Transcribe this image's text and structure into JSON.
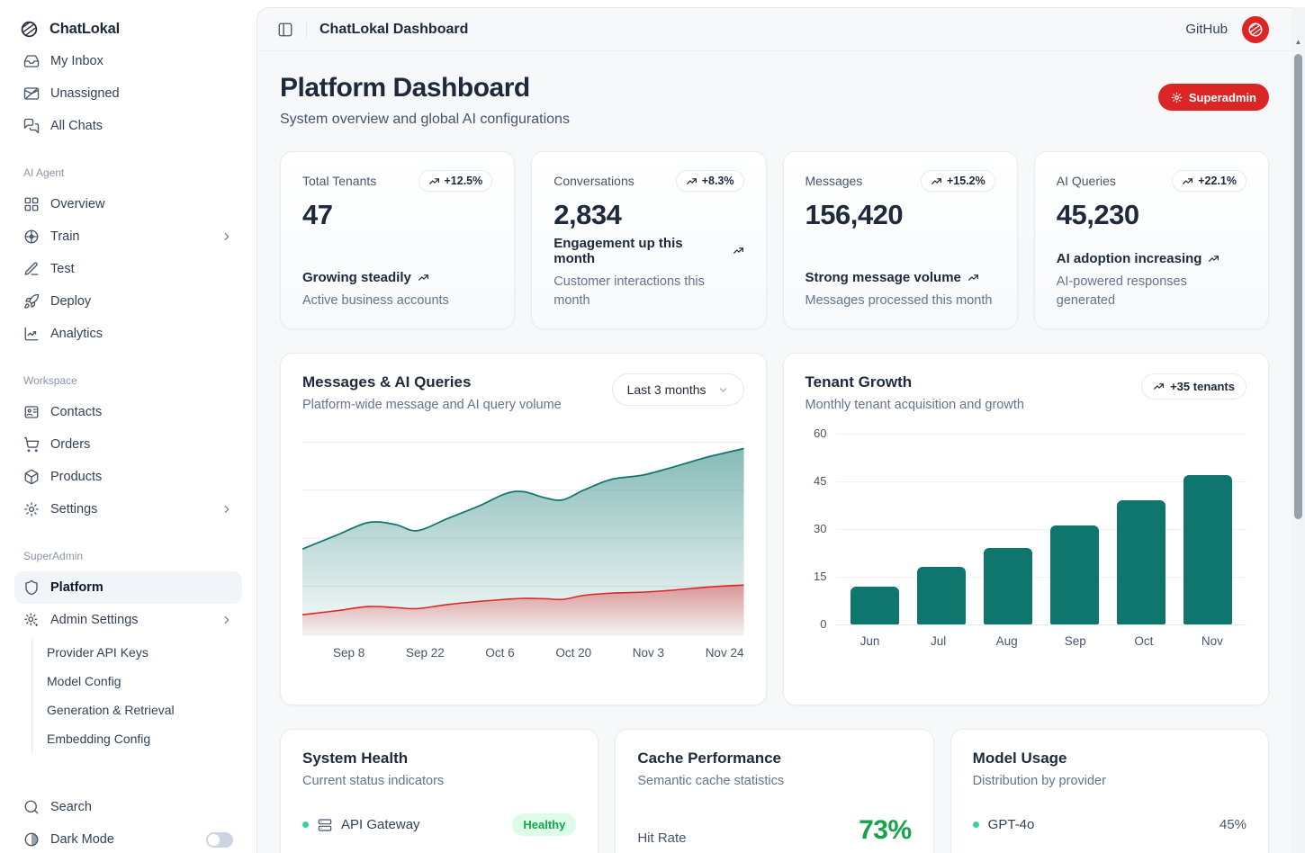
{
  "brand": {
    "name": "ChatLokal"
  },
  "header": {
    "app_title": "ChatLokal Dashboard",
    "github_label": "GitHub"
  },
  "page": {
    "title": "Platform Dashboard",
    "subtitle": "System overview and global AI configurations",
    "role_badge": "Superadmin"
  },
  "sidebar": {
    "items_top": [
      {
        "label": "My Inbox"
      },
      {
        "label": "Unassigned"
      },
      {
        "label": "All Chats"
      }
    ],
    "groups": [
      {
        "label": "AI Agent",
        "items": [
          {
            "label": "Overview"
          },
          {
            "label": "Train"
          },
          {
            "label": "Test"
          },
          {
            "label": "Deploy"
          },
          {
            "label": "Analytics"
          }
        ]
      },
      {
        "label": "Workspace",
        "items": [
          {
            "label": "Contacts"
          },
          {
            "label": "Orders"
          },
          {
            "label": "Products"
          },
          {
            "label": "Settings"
          }
        ]
      },
      {
        "label": "SuperAdmin",
        "items": [
          {
            "label": "Platform"
          },
          {
            "label": "Admin Settings"
          }
        ],
        "sub_items": [
          {
            "label": "Provider API Keys"
          },
          {
            "label": "Model Config"
          },
          {
            "label": "Generation & Retrieval"
          },
          {
            "label": "Embedding Config"
          }
        ]
      }
    ],
    "search_label": "Search",
    "dark_mode_label": "Dark Mode",
    "dark_mode_on": false
  },
  "stats": [
    {
      "label": "Total Tenants",
      "trend": "+12.5%",
      "value": "47",
      "highlight": "Growing steadily",
      "description": "Active business accounts"
    },
    {
      "label": "Conversations",
      "trend": "+8.3%",
      "value": "2,834",
      "highlight": "Engagement up this month",
      "description": "Customer interactions this month"
    },
    {
      "label": "Messages",
      "trend": "+15.2%",
      "value": "156,420",
      "highlight": "Strong message volume",
      "description": "Messages processed this month"
    },
    {
      "label": "AI Queries",
      "trend": "+22.1%",
      "value": "45,230",
      "highlight": "AI adoption increasing",
      "description": "AI-powered responses generated"
    }
  ],
  "chart_data": [
    {
      "type": "area",
      "title": "Messages & AI Queries",
      "subtitle": "Platform-wide message and AI query volume",
      "range": "Last 3 months",
      "x_labels": [
        "Sep 8",
        "Sep 22",
        "Oct 6",
        "Oct 20",
        "Nov 3",
        "Nov 24"
      ],
      "y_axis_labels_visible": false,
      "grid": true,
      "note": "y values are percent of plot height (no numeric y axis shown)",
      "series": [
        {
          "name": "Messages",
          "color": "#0f766e",
          "points": [
            [
              0,
              42
            ],
            [
              8,
              49
            ],
            [
              15,
              55
            ],
            [
              21,
              54
            ],
            [
              26,
              51
            ],
            [
              33,
              57
            ],
            [
              40,
              63
            ],
            [
              46,
              69
            ],
            [
              50,
              70
            ],
            [
              55,
              67
            ],
            [
              59,
              66
            ],
            [
              64,
              71
            ],
            [
              70,
              76
            ],
            [
              77,
              78
            ],
            [
              84,
              82
            ],
            [
              92,
              87
            ],
            [
              100,
              91
            ]
          ]
        },
        {
          "name": "AI Queries",
          "color": "#dc2626",
          "points": [
            [
              0,
              10
            ],
            [
              8,
              12
            ],
            [
              15,
              14
            ],
            [
              21,
              13.5
            ],
            [
              26,
              13
            ],
            [
              33,
              15
            ],
            [
              40,
              16.5
            ],
            [
              46,
              17.5
            ],
            [
              50,
              18
            ],
            [
              55,
              17.8
            ],
            [
              59,
              17.5
            ],
            [
              64,
              19.5
            ],
            [
              70,
              20.5
            ],
            [
              77,
              21
            ],
            [
              84,
              22
            ],
            [
              92,
              23.5
            ],
            [
              100,
              24.5
            ]
          ]
        }
      ]
    },
    {
      "type": "bar",
      "title": "Tenant Growth",
      "subtitle": "Monthly tenant acquisition and growth",
      "badge": "+35 tenants",
      "categories": [
        "Jun",
        "Jul",
        "Aug",
        "Sep",
        "Oct",
        "Nov"
      ],
      "values": [
        12,
        18,
        24,
        31,
        39,
        47
      ],
      "ylim": [
        0,
        60
      ],
      "yticks": [
        0,
        15,
        30,
        45,
        60
      ],
      "grid": true,
      "color": "#0f766e"
    }
  ],
  "bottom": {
    "system_health": {
      "title": "System Health",
      "subtitle": "Current status indicators",
      "services": [
        {
          "name": "API Gateway",
          "status": "Healthy"
        }
      ]
    },
    "cache_performance": {
      "title": "Cache Performance",
      "subtitle": "Semantic cache statistics",
      "metric_label": "Hit Rate",
      "metric_value": "73%"
    },
    "model_usage": {
      "title": "Model Usage",
      "subtitle": "Distribution by provider",
      "providers": [
        {
          "name": "GPT-4o",
          "share": "45%"
        }
      ]
    }
  },
  "colors": {
    "accent_red": "#dc2626",
    "chart_teal": "#0f766e",
    "chart_red": "#dc2626",
    "success_green": "#16a34a",
    "dot_green": "#34d399"
  }
}
